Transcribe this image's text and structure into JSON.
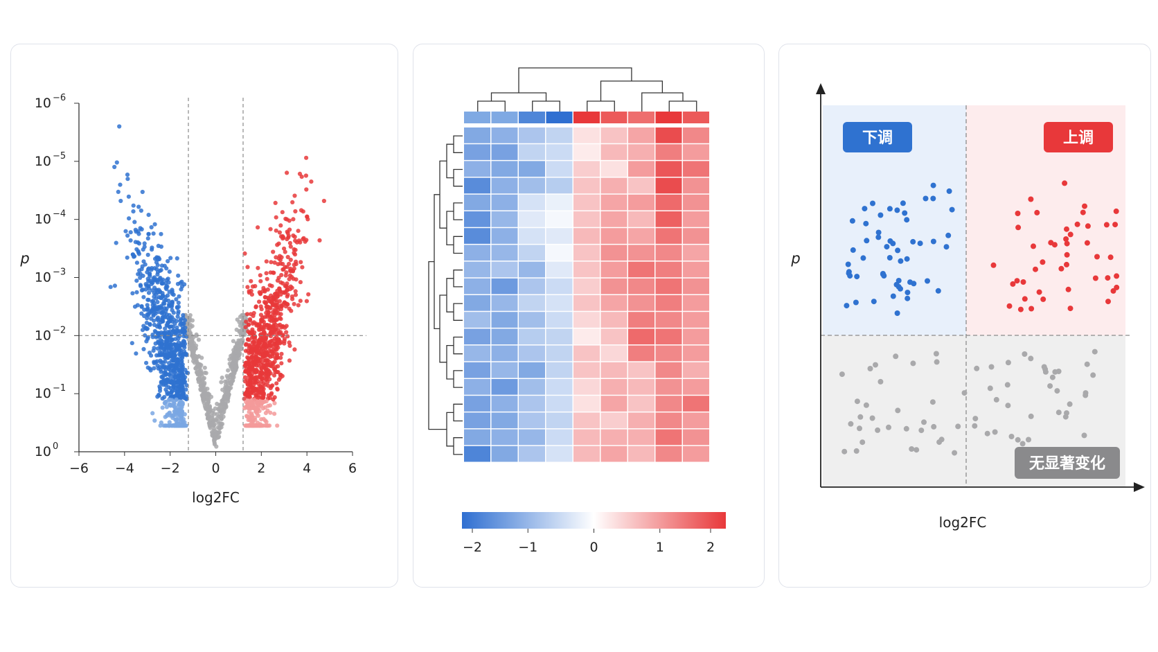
{
  "colors": {
    "down": "#2f72d0",
    "up": "#e8383a",
    "ns": "#a9a9ab",
    "heat_low": "#2f6fd1",
    "heat_mid": "#ffffff",
    "heat_high": "#e8383a"
  },
  "chart_data": [
    {
      "type": "scatter",
      "xlabel": "log2FC",
      "ylabel": "p",
      "x_ticks": [
        "−6",
        "−4",
        "−2",
        "0",
        "2",
        "4",
        "6"
      ],
      "x_tick_values": [
        -6,
        -4,
        -2,
        0,
        2,
        4,
        6
      ],
      "y_ticks": [
        {
          "base": "10",
          "exp": "0",
          "value": 0
        },
        {
          "base": "10",
          "exp": "−1",
          "value": 1
        },
        {
          "base": "10",
          "exp": "−2",
          "value": 2
        },
        {
          "base": "10",
          "exp": "−3",
          "value": 3
        },
        {
          "base": "10",
          "exp": "−4",
          "value": 4
        },
        {
          "base": "10",
          "exp": "−5",
          "value": 5
        },
        {
          "base": "10",
          "exp": "−6",
          "value": 6
        }
      ],
      "xlim": [
        -6,
        6
      ],
      "ylim_neglog10": [
        0,
        6
      ],
      "y_scale": "log (−log10 p)",
      "thresholds": {
        "log2fc": [
          -1.2,
          1.2
        ],
        "p": 0.01
      },
      "series": [
        {
          "color": "down",
          "x_range": [
            -4.7,
            -1.2
          ],
          "count": 900
        },
        {
          "color": "ns",
          "x_range": [
            -1.2,
            1.2
          ],
          "count": 550
        },
        {
          "color": "up",
          "x_range": [
            1.2,
            4.7
          ],
          "count": 900
        }
      ]
    },
    {
      "type": "heatmap",
      "rows": 20,
      "cols": 9,
      "group_colors": [
        "#7fa9e3",
        "#7fa9e3",
        "#4f86d8",
        "#2f6fd1",
        "#e8383a",
        "#ec5a5a",
        "#ee6e6e",
        "#e8383a",
        "#ec5a5a"
      ],
      "values": [
        [
          -1.2,
          -1.1,
          -0.8,
          -0.6,
          0.3,
          0.6,
          0.9,
          1.8,
          1.2
        ],
        [
          -1.3,
          -1.3,
          -0.6,
          -0.5,
          0.2,
          0.7,
          0.8,
          1.3,
          1.0
        ],
        [
          -1.1,
          -1.2,
          -1.2,
          -0.5,
          0.5,
          0.3,
          1.0,
          1.7,
          1.4
        ],
        [
          -1.6,
          -1.1,
          -0.9,
          -0.7,
          0.6,
          0.8,
          0.6,
          1.8,
          1.1
        ],
        [
          -1.2,
          -1.1,
          -0.4,
          -0.2,
          0.6,
          0.9,
          1.0,
          1.5,
          1.1
        ],
        [
          -1.5,
          -1.0,
          -0.3,
          -0.1,
          0.6,
          0.9,
          0.7,
          1.6,
          1.0
        ],
        [
          -1.6,
          -1.1,
          -0.4,
          -0.3,
          0.7,
          1.0,
          0.9,
          1.4,
          1.1
        ],
        [
          -1.1,
          -1.0,
          -0.6,
          -0.1,
          0.6,
          1.1,
          1.1,
          1.2,
          0.9
        ],
        [
          -1.0,
          -0.8,
          -1.0,
          -0.3,
          0.6,
          1.0,
          1.4,
          1.3,
          1.0
        ],
        [
          -1.1,
          -1.4,
          -0.8,
          -0.5,
          0.5,
          1.1,
          1.2,
          1.4,
          1.1
        ],
        [
          -1.2,
          -1.0,
          -0.6,
          -0.4,
          0.6,
          0.9,
          1.1,
          1.3,
          1.0
        ],
        [
          -0.9,
          -1.2,
          -0.9,
          -0.5,
          0.4,
          0.7,
          1.3,
          1.2,
          1.0
        ],
        [
          -1.3,
          -1.2,
          -0.7,
          -0.6,
          0.2,
          0.6,
          1.5,
          1.4,
          1.0
        ],
        [
          -1.0,
          -1.1,
          -0.8,
          -0.6,
          0.6,
          0.4,
          1.3,
          1.2,
          1.0
        ],
        [
          -1.3,
          -1.0,
          -1.2,
          -0.6,
          0.6,
          0.7,
          0.6,
          1.2,
          0.8
        ],
        [
          -1.1,
          -1.4,
          -0.9,
          -0.5,
          0.4,
          0.8,
          0.7,
          1.1,
          1.0
        ],
        [
          -1.3,
          -1.1,
          -0.8,
          -0.5,
          0.3,
          0.9,
          0.6,
          1.2,
          1.4
        ],
        [
          -1.3,
          -1.2,
          -0.8,
          -0.6,
          0.6,
          0.5,
          0.8,
          1.2,
          1.0
        ],
        [
          -1.2,
          -1.1,
          -1.0,
          -0.5,
          0.7,
          0.8,
          0.8,
          1.4,
          1.1
        ],
        [
          -1.7,
          -1.2,
          -0.8,
          -0.4,
          0.7,
          0.9,
          0.7,
          1.2,
          1.0
        ]
      ],
      "colorbar": {
        "min": -2,
        "max": 2,
        "ticks": [
          "−2",
          "−1",
          "0",
          "1",
          "2"
        ],
        "tick_values": [
          -2,
          -1,
          0,
          1,
          2
        ]
      },
      "dendrogram": {
        "top": true,
        "left": true
      }
    },
    {
      "type": "scatter",
      "xlabel": "log2FC",
      "ylabel": "p",
      "labels": {
        "down": "下调",
        "up": "上调",
        "ns": "无显著变化"
      },
      "quadrants": [
        "down",
        "up",
        "ns"
      ],
      "series": [
        {
          "label": "下调",
          "color": "down",
          "count": 55
        },
        {
          "label": "上调",
          "color": "up",
          "count": 45
        },
        {
          "label": "无显著变化",
          "color": "ns",
          "count": 70
        }
      ]
    }
  ]
}
